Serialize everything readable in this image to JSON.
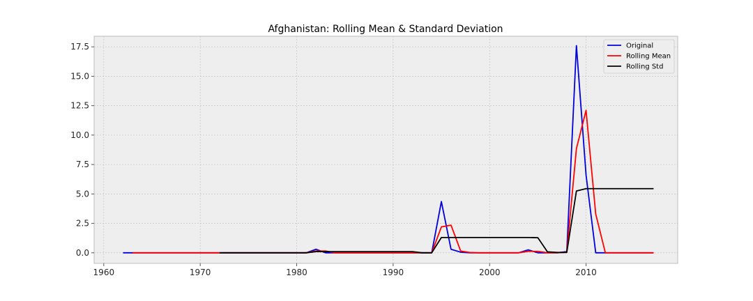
{
  "chart_data": {
    "type": "line",
    "title": "Afghanistan: Rolling Mean & Standard Deviation",
    "xlabel": "",
    "ylabel": "",
    "xlim": [
      1959,
      2019.5
    ],
    "ylim": [
      -0.9,
      18.4
    ],
    "xticks": [
      1960,
      1970,
      1980,
      1990,
      2000,
      2010
    ],
    "yticks": [
      0.0,
      2.5,
      5.0,
      7.5,
      10.0,
      12.5,
      15.0,
      17.5
    ],
    "ytick_labels": [
      "0.0",
      "2.5",
      "5.0",
      "7.5",
      "10.0",
      "12.5",
      "15.0",
      "17.5"
    ],
    "grid": true,
    "legend_position": "top-right",
    "series": [
      {
        "name": "Original",
        "color": "#0000dd",
        "x": [
          1962,
          1963,
          1964,
          1965,
          1966,
          1967,
          1968,
          1969,
          1970,
          1971,
          1972,
          1973,
          1974,
          1975,
          1976,
          1977,
          1978,
          1979,
          1980,
          1981,
          1982,
          1983,
          1984,
          1985,
          1986,
          1987,
          1988,
          1989,
          1990,
          1991,
          1992,
          1993,
          1994,
          1995,
          1996,
          1997,
          1998,
          1999,
          2000,
          2001,
          2002,
          2003,
          2004,
          2005,
          2006,
          2007,
          2008,
          2009,
          2010,
          2011,
          2012,
          2013,
          2014,
          2015,
          2016,
          2017
        ],
        "y": [
          0,
          0,
          0,
          0,
          0,
          0,
          0,
          0,
          0,
          0,
          0,
          0,
          0,
          0,
          0,
          0,
          0,
          0,
          0,
          0,
          0.3,
          0,
          0,
          0,
          0,
          0,
          0,
          0,
          0,
          0,
          0,
          0,
          0,
          4.35,
          0.3,
          0.05,
          0,
          0,
          0,
          0,
          0,
          0,
          0.25,
          0,
          0,
          0,
          0.1,
          17.6,
          6.6,
          0,
          0,
          0,
          0,
          0,
          0,
          0
        ]
      },
      {
        "name": "Rolling Mean",
        "color": "#ff0000",
        "x": [
          1963,
          1964,
          1965,
          1966,
          1967,
          1968,
          1969,
          1970,
          1971,
          1972,
          1973,
          1974,
          1975,
          1976,
          1977,
          1978,
          1979,
          1980,
          1981,
          1982,
          1983,
          1984,
          1985,
          1986,
          1987,
          1988,
          1989,
          1990,
          1991,
          1992,
          1993,
          1994,
          1995,
          1996,
          1997,
          1998,
          1999,
          2000,
          2001,
          2002,
          2003,
          2004,
          2005,
          2006,
          2007,
          2008,
          2009,
          2010,
          2011,
          2012,
          2013,
          2014,
          2015,
          2016,
          2017
        ],
        "y": [
          0,
          0,
          0,
          0,
          0,
          0,
          0,
          0,
          0,
          0,
          0,
          0,
          0,
          0,
          0,
          0,
          0,
          0,
          0,
          0.15,
          0.15,
          0,
          0,
          0,
          0,
          0,
          0,
          0,
          0,
          0,
          0,
          0,
          2.2,
          2.35,
          0.15,
          0.02,
          0,
          0,
          0,
          0,
          0,
          0.12,
          0.12,
          0,
          0,
          0.05,
          8.85,
          12.1,
          3.3,
          0,
          0,
          0,
          0,
          0,
          0
        ]
      },
      {
        "name": "Rolling Std",
        "color": "#000000",
        "x": [
          1972,
          1981,
          1982,
          1983,
          1992,
          1993,
          1994,
          1995,
          2004,
          2005,
          2006,
          2007,
          2008,
          2009,
          2010,
          2017
        ],
        "y": [
          0,
          0,
          0.1,
          0.1,
          0.1,
          0,
          0,
          1.3,
          1.3,
          1.28,
          0.08,
          0.03,
          0.03,
          5.25,
          5.45,
          5.45
        ]
      }
    ]
  },
  "colors": {
    "plot_background": "#eeeeee",
    "grid": "#bfbfbf",
    "axis_frame": "#bcbcbc"
  }
}
